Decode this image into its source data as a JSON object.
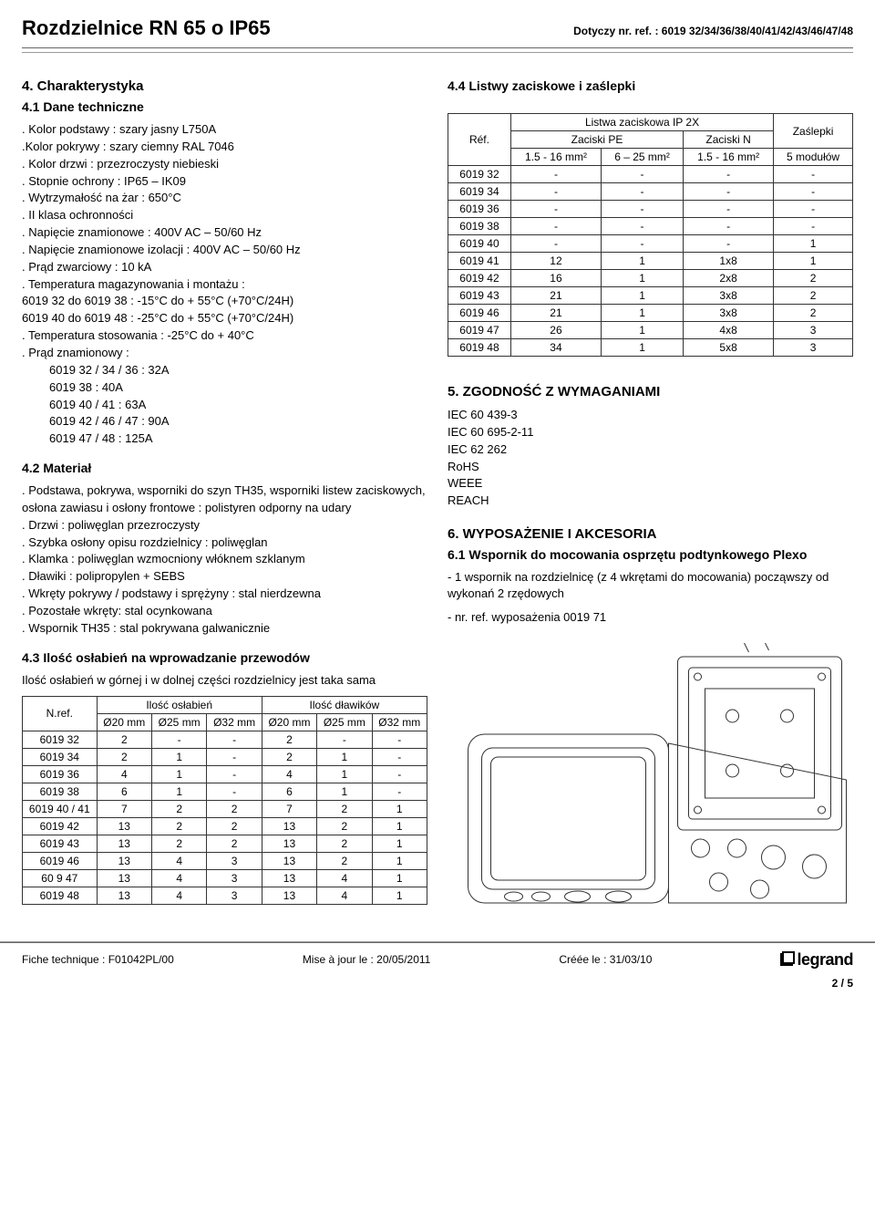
{
  "header": {
    "title": "Rozdzielnice RN 65 o IP65",
    "ref": "Dotyczy  nr. ref. : 6019 32/34/36/38/40/41/42/43/46/47/48"
  },
  "s4": {
    "title": "4. Charakterystyka",
    "s41_title": "4.1 Dane  techniczne",
    "specs": [
      ". Kolor podstawy : szary jasny L750A",
      ".Kolor pokrywy : szary ciemny RAL 7046",
      ". Kolor drzwi : przezroczysty niebieski",
      ". Stopnie  ochrony : IP65 – IK09",
      ". Wytrzymałość  na  żar : 650°C",
      ". II klasa ochronności",
      ". Napięcie  znamionowe : 400V AC – 50/60 Hz",
      ". Napięcie znamionowe izolacji : 400V AC – 50/60 Hz",
      ". Prąd  zwarciowy : 10 kA",
      ". Temperatura magazynowania i montażu :",
      "6019 32 do 6019 38 : -15°C do + 55°C (+70°C/24H)",
      "6019 40 do 6019 48 : -25°C do + 55°C (+70°C/24H)",
      ". Temperatura stosowania : -25°C do + 40°C",
      ". Prąd  znamionowy :"
    ],
    "rated_current": [
      "6019 32 / 34 / 36 : 32A",
      "6019 38 : 40A",
      "6019 40 / 41 : 63A",
      "6019 42 / 46 / 47 : 90A",
      "6019 47 / 48 : 125A"
    ],
    "s42_title": "4.2 Materiał",
    "materials": [
      ". Podstawa, pokrywa, wsporniki do  szyn TH35, wsporniki listew zaciskowych, osłona zawiasu i osłony frontowe : polistyren odporny  na  udary",
      ". Drzwi : poliwęglan przezroczysty",
      ". Szybka  osłony  opisu rozdzielnicy : poliwęglan",
      ". Klamka : poliwęglan wzmocniony  włóknem  szklanym",
      ". Dławiki : polipropylen + SEBS",
      ". Wkręty pokrywy / podstawy i sprężyny : stal nierdzewna",
      ". Pozostałe wkręty: stal ocynkowana",
      ". Wspornik TH35 : stal pokrywana  galwanicznie"
    ],
    "s43_title": "4.3 Ilość osłabień  na  wprowadzanie  przewodów",
    "s43_note": "Ilość osłabień  w górnej  i  w  dolnej  części  rozdzielnicy  jest taka  sama",
    "knockouts": {
      "hdr_top1": "Ilość  osłabień",
      "hdr_top2": "Ilość  dławików",
      "ref_hdr": "N.ref.",
      "cols": [
        "Ø20 mm",
        "Ø25 mm",
        "Ø32 mm",
        "Ø20 mm",
        "Ø25 mm",
        "Ø32 mm"
      ],
      "rows": [
        {
          "ref": "6019 32",
          "v": [
            "2",
            "-",
            "-",
            "2",
            "-",
            "-"
          ]
        },
        {
          "ref": "6019 34",
          "v": [
            "2",
            "1",
            "-",
            "2",
            "1",
            "-"
          ]
        },
        {
          "ref": "6019 36",
          "v": [
            "4",
            "1",
            "-",
            "4",
            "1",
            "-"
          ]
        },
        {
          "ref": "6019 38",
          "v": [
            "6",
            "1",
            "-",
            "6",
            "1",
            "-"
          ]
        },
        {
          "ref": "6019 40 / 41",
          "v": [
            "7",
            "2",
            "2",
            "7",
            "2",
            "1"
          ]
        },
        {
          "ref": "6019 42",
          "v": [
            "13",
            "2",
            "2",
            "13",
            "2",
            "1"
          ]
        },
        {
          "ref": "6019 43",
          "v": [
            "13",
            "2",
            "2",
            "13",
            "2",
            "1"
          ]
        },
        {
          "ref": "6019 46",
          "v": [
            "13",
            "4",
            "3",
            "13",
            "2",
            "1"
          ]
        },
        {
          "ref": "60  9 47",
          "v": [
            "13",
            "4",
            "3",
            "13",
            "4",
            "1"
          ]
        },
        {
          "ref": "6019 48",
          "v": [
            "13",
            "4",
            "3",
            "13",
            "4",
            "1"
          ]
        }
      ]
    }
  },
  "s44": {
    "title": "4.4 Listwy  zaciskowe i  zaślepki",
    "tbl": {
      "h_listwa": "Listwa zaciskowa IP 2X",
      "h_zaslepki": "Zaślepki",
      "h_pe": "Zaciski  PE",
      "h_n": "Zaciski N",
      "h_ref": "Réf.",
      "h_c1": "1.5 - 16 mm²",
      "h_c2": "6 – 25 mm²",
      "h_c3": "1.5 - 16 mm²",
      "h_c4": "5 modułów",
      "rows": [
        {
          "ref": "6019 32",
          "v": [
            "-",
            "-",
            "-",
            "-"
          ]
        },
        {
          "ref": "6019 34",
          "v": [
            "-",
            "-",
            "-",
            "-"
          ]
        },
        {
          "ref": "6019 36",
          "v": [
            "-",
            "-",
            "-",
            "-"
          ]
        },
        {
          "ref": "6019 38",
          "v": [
            "-",
            "-",
            "-",
            "-"
          ]
        },
        {
          "ref": "6019 40",
          "v": [
            "-",
            "-",
            "-",
            "1"
          ]
        },
        {
          "ref": "6019 41",
          "v": [
            "12",
            "1",
            "1x8",
            "1"
          ]
        },
        {
          "ref": "6019 42",
          "v": [
            "16",
            "1",
            "2x8",
            "2"
          ]
        },
        {
          "ref": "6019 43",
          "v": [
            "21",
            "1",
            "3x8",
            "2"
          ]
        },
        {
          "ref": "6019 46",
          "v": [
            "21",
            "1",
            "3x8",
            "2"
          ]
        },
        {
          "ref": "6019 47",
          "v": [
            "26",
            "1",
            "4x8",
            "3"
          ]
        },
        {
          "ref": "6019 48",
          "v": [
            "34",
            "1",
            "5x8",
            "3"
          ]
        }
      ]
    }
  },
  "s5": {
    "title": "5. ZGODNOŚĆ Z WYMAGANIAMI",
    "items": [
      "IEC 60 439-3",
      "IEC 60 695-2-11",
      "IEC 62 262",
      "RoHS",
      "WEEE",
      "REACH"
    ]
  },
  "s6": {
    "title": "6. WYPOSAŻENIE I  AKCESORIA",
    "s61_title": "6.1 Wspornik do  mocowania osprzętu podtynkowego Plexo",
    "lines": [
      "- 1 wspornik  na  rozdzielnicę (z 4 wkrętami do mocowania) począwszy  od wykonań 2 rzędowych",
      "- nr. ref. wyposażenia 0019 71"
    ]
  },
  "footer": {
    "fiche": "Fiche technique : F01042PL/00",
    "mise": "Mise à jour le : 20/05/2011",
    "cree": "Créée le : 31/03/10",
    "logo": "legrand",
    "page": "2 / 5"
  },
  "colors": {
    "text": "#000000",
    "rule": "#666666",
    "rule_light": "#999999",
    "stroke": "#333333"
  }
}
